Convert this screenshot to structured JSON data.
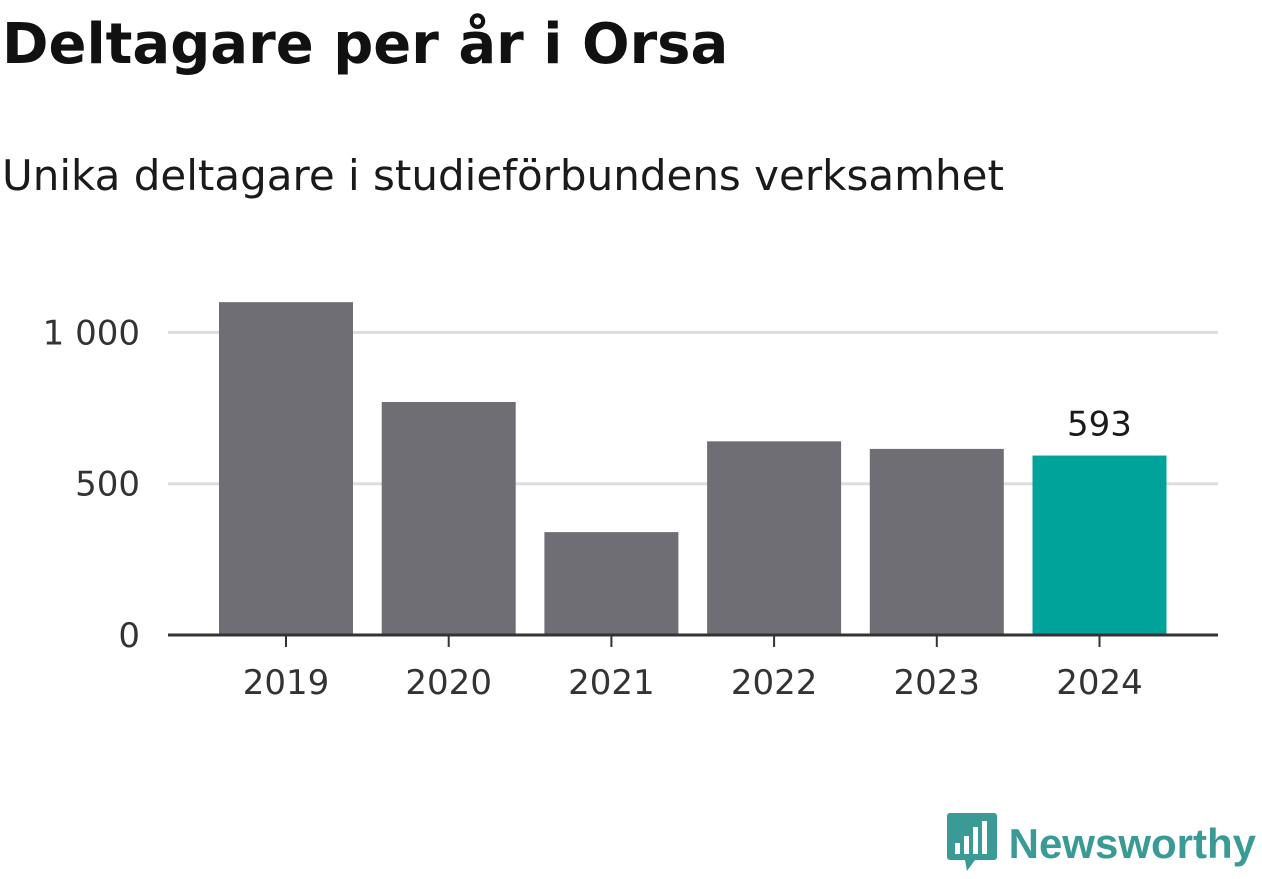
{
  "title": "Deltagare per år i Orsa",
  "subtitle": "Unika deltagare i studieförbundens verksamhet",
  "brand": {
    "name": "Newsworthy",
    "icon": "bar-chart-speech-bubble-icon",
    "color": "#3a9a96"
  },
  "chart_data": {
    "type": "bar",
    "categories": [
      "2019",
      "2020",
      "2021",
      "2022",
      "2023",
      "2024"
    ],
    "values": [
      1100,
      770,
      340,
      640,
      615,
      593
    ],
    "y_ticks": [
      0,
      500,
      1000
    ],
    "y_tick_labels": [
      "0",
      "500",
      "1 000"
    ],
    "ylim": [
      0,
      1100
    ],
    "grid": true,
    "highlight_index": 5,
    "colors": {
      "default": "#6f6e74",
      "highlight": "#00a39a",
      "grid": "#dddddd",
      "axis": "#333333"
    },
    "data_labels": [
      {
        "index": 5,
        "text": "593"
      }
    ],
    "xlabel": "",
    "ylabel": ""
  }
}
